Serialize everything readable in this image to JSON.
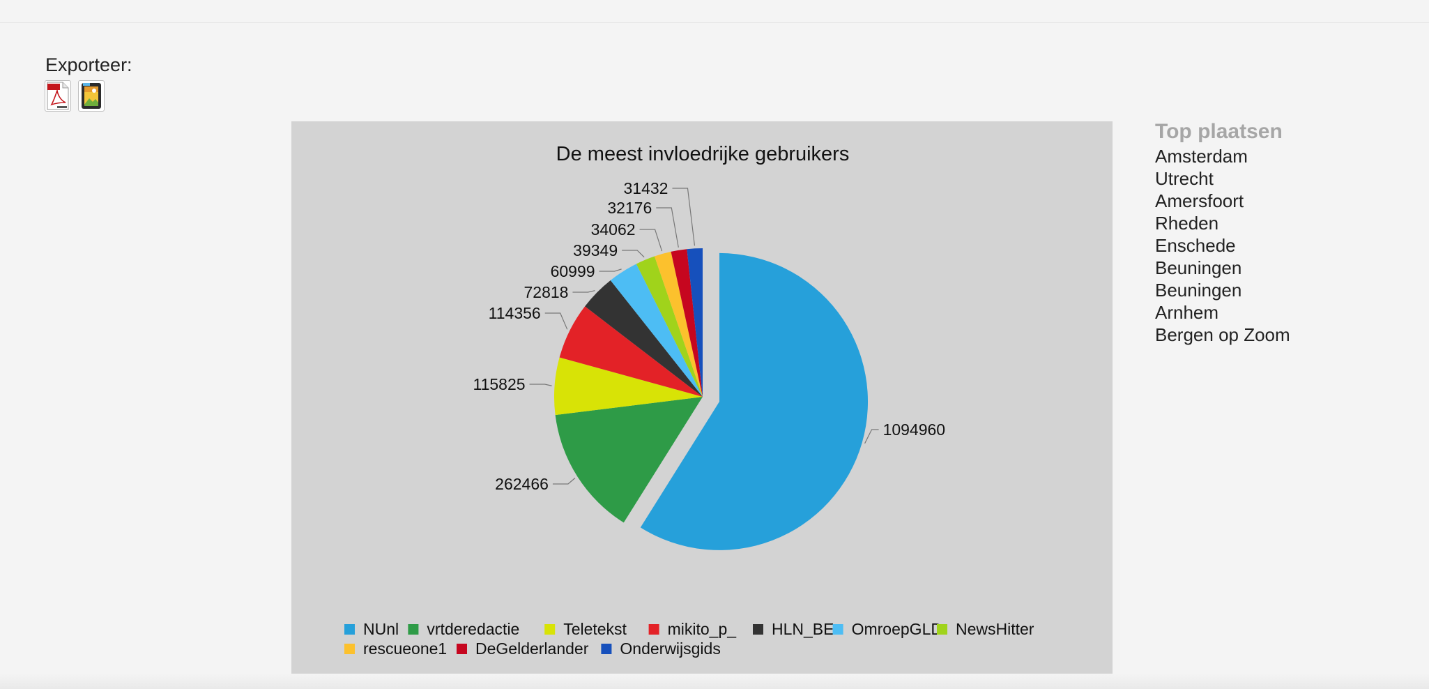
{
  "export": {
    "label": "Exporteer:",
    "pdf_icon": "pdf-file-icon",
    "image_icon": "image-file-icon"
  },
  "top_places": {
    "title": "Top plaatsen",
    "items": [
      "Amsterdam",
      "Utrecht",
      "Amersfoort",
      "Rheden",
      "Enschede",
      "Beuningen",
      "Beuningen",
      "Arnhem",
      "Bergen op Zoom"
    ]
  },
  "chart_data": {
    "type": "pie",
    "title": "De meest invloedrijke gebruikers",
    "categories": [
      "NUnl",
      "vrtderedactie",
      "Teletekst",
      "mikito_p_",
      "HLN_BE",
      "OmroepGLD",
      "NewsHitter",
      "rescueone1",
      "DeGelderlander",
      "Onderwijsgids"
    ],
    "values": [
      1094960,
      262466,
      115825,
      114356,
      72818,
      60999,
      39349,
      34062,
      32176,
      31432
    ],
    "colors": [
      "#26a0da",
      "#2e9b47",
      "#d8e306",
      "#e32227",
      "#333333",
      "#4dbdf4",
      "#a0d31b",
      "#fcc12d",
      "#c6061f",
      "#1650bc"
    ],
    "exploded": "NUnl",
    "legend_position": "bottom"
  }
}
